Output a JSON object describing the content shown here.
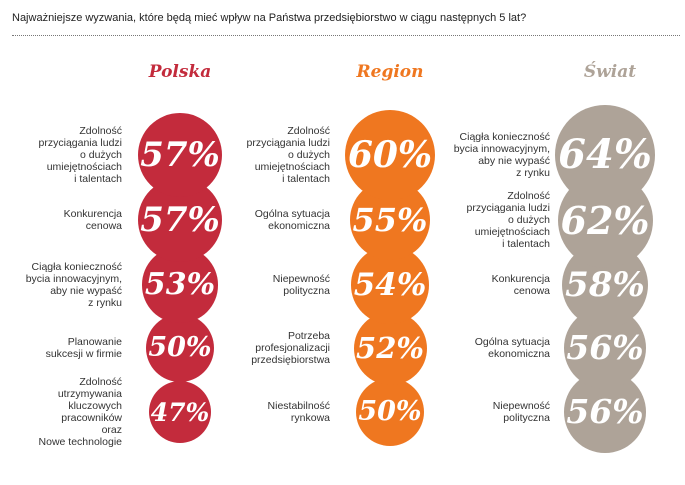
{
  "question": "Najważniejsze wyzwania, które będą mieć wpływ na Państwa przedsiębiorstwo w ciągu następnych 5 lat?",
  "colors": {
    "Polska": "#c32b3c",
    "Region": "#ef7720",
    "Swiat": "#aea398"
  },
  "chart_data": [
    {
      "type": "bubble",
      "title": "Polska",
      "categories": [
        "Zdolność przyciągania ludzi o dużych umiejętnościach i talentach",
        "Konkurencja cenowa",
        "Ciągła konieczność bycia innowacyjnym, aby nie wypaść z rynku",
        "Planowanie sukcesji w firmie",
        "Zdolność utrzymywania kluczowych pracowników oraz Nowe technologie"
      ],
      "values": [
        57,
        57,
        53,
        50,
        47
      ],
      "value_labels": [
        "57%",
        "57%",
        "53%",
        "50%",
        "47%"
      ]
    },
    {
      "type": "bubble",
      "title": "Region",
      "categories": [
        "Zdolność przyciągania ludzi o dużych umiejętnościach i talentach",
        "Ogólna sytuacja ekonomiczna",
        "Niepewność polityczna",
        "Potrzeba profesjonalizacji przedsiębiorstwa",
        "Niestabilność rynkowa"
      ],
      "values": [
        60,
        55,
        54,
        52,
        50
      ],
      "value_labels": [
        "60%",
        "55%",
        "54%",
        "52%",
        "50%"
      ]
    },
    {
      "type": "bubble",
      "title": "Świat",
      "categories": [
        "Ciągła konieczność bycia innowacyjnym, aby nie wypaść z rynku",
        "Zdolność przyciągania ludzi o dużych umiejętnościach i talentach",
        "Konkurencja cenowa",
        "Ogólna sytuacja ekonomiczna",
        "Niepewność polityczna"
      ],
      "values": [
        64,
        62,
        58,
        56,
        56
      ],
      "value_labels": [
        "64%",
        "62%",
        "58%",
        "56%",
        "56%"
      ]
    }
  ],
  "label_lines": [
    [
      [
        "Zdolność",
        "przyciągania ludzi",
        "o dużych",
        "umiejętnościach",
        "i talentach"
      ],
      [
        "Konkurencja",
        "cenowa"
      ],
      [
        "Ciągła konieczność",
        "bycia innowacyjnym,",
        "aby nie wypaść",
        "z rynku"
      ],
      [
        "Planowanie",
        "sukcesji w firmie"
      ],
      [
        "Zdolność",
        "utrzymywania",
        "kluczowych",
        "pracowników",
        "oraz",
        "Nowe technologie"
      ]
    ],
    [
      [
        "Zdolność",
        "przyciągania ludzi",
        "o dużych",
        "umiejętnościach",
        "i talentach"
      ],
      [
        "Ogólna sytuacja",
        "ekonomiczna"
      ],
      [
        "Niepewność",
        "polityczna"
      ],
      [
        "Potrzeba",
        "profesjonalizacji",
        "przedsiębiorstwa"
      ],
      [
        "Niestabilność",
        "rynkowa"
      ]
    ],
    [
      [
        "Ciągła konieczność",
        "bycia innowacyjnym,",
        "aby nie wypaść",
        "z rynku"
      ],
      [
        "Zdolność",
        "przyciągania ludzi",
        "o dużych",
        "umiejętnościach",
        "i talentach"
      ],
      [
        "Konkurencja",
        "cenowa"
      ],
      [
        "Ogólna sytuacja",
        "ekonomiczna"
      ],
      [
        "Niepewność",
        "polityczna"
      ]
    ]
  ]
}
